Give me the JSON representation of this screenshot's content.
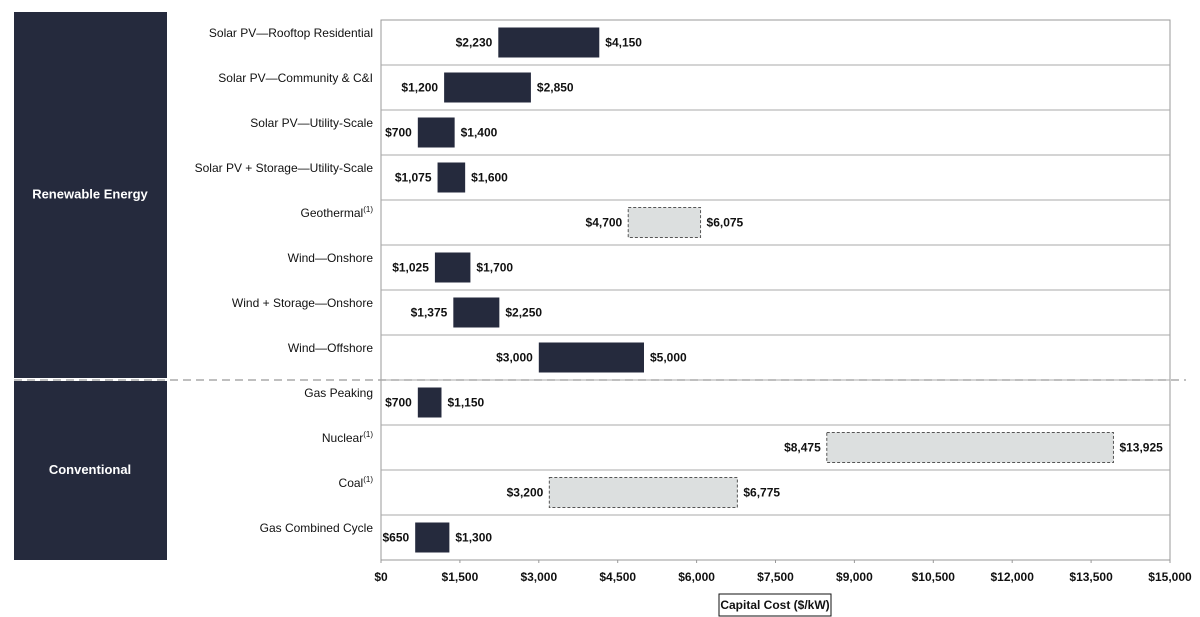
{
  "chart_data": {
    "type": "range_bar",
    "categories": [
      "Solar PV—Rooftop Residential",
      "Solar PV—Community & C&I",
      "Solar PV—Utility-Scale",
      "Solar PV + Storage—Utility-Scale",
      "Geothermal",
      "Wind—Onshore",
      "Wind + Storage—Onshore",
      "Wind—Offshore",
      "Gas Peaking",
      "Nuclear",
      "Coal",
      "Gas Combined Cycle"
    ],
    "notes": [
      null,
      null,
      null,
      null,
      "(1)",
      null,
      null,
      null,
      null,
      "(1)",
      "(1)",
      null
    ],
    "groups": [
      "Renewable Energy",
      "Conventional"
    ],
    "category_group": [
      0,
      0,
      0,
      0,
      0,
      0,
      0,
      0,
      1,
      1,
      1,
      1
    ],
    "low": [
      2230,
      1200,
      700,
      1075,
      4700,
      1025,
      1375,
      3000,
      700,
      8475,
      3200,
      650
    ],
    "high": [
      4150,
      2850,
      1400,
      1600,
      6075,
      1700,
      2250,
      5000,
      1150,
      13925,
      6775,
      1300
    ],
    "low_labels": [
      "$2,230",
      "$1,200",
      "$700",
      "$1,075",
      "$4,700",
      "$1,025",
      "$1,375",
      "$3,000",
      "$700",
      "$8,475",
      "$3,200",
      "$650"
    ],
    "high_labels": [
      "$4,150",
      "$2,850",
      "$1,400",
      "$1,600",
      "$6,075",
      "$1,700",
      "$2,250",
      "$5,000",
      "$1,150",
      "$13,925",
      "$6,775",
      "$1,300"
    ],
    "dashed": [
      false,
      false,
      false,
      false,
      true,
      false,
      false,
      false,
      false,
      true,
      true,
      false
    ],
    "color": "#252a3d",
    "dashed_color": "#dcdfdf",
    "xlabel": "Capital Cost ($/kW)",
    "xlim": [
      0,
      15000
    ],
    "xticks": [
      {
        "value": 0,
        "label": "$0"
      },
      {
        "value": 1500,
        "label": "$1,500"
      },
      {
        "value": 3000,
        "label": "$3,000"
      },
      {
        "value": 4500,
        "label": "$4,500"
      },
      {
        "value": 6000,
        "label": "$6,000"
      },
      {
        "value": 7500,
        "label": "$7,500"
      },
      {
        "value": 9000,
        "label": "$9,000"
      },
      {
        "value": 10500,
        "label": "$10,500"
      },
      {
        "value": 12000,
        "label": "$12,000"
      },
      {
        "value": 13500,
        "label": "$13,500"
      },
      {
        "value": 15000,
        "label": "$15,000"
      }
    ]
  }
}
